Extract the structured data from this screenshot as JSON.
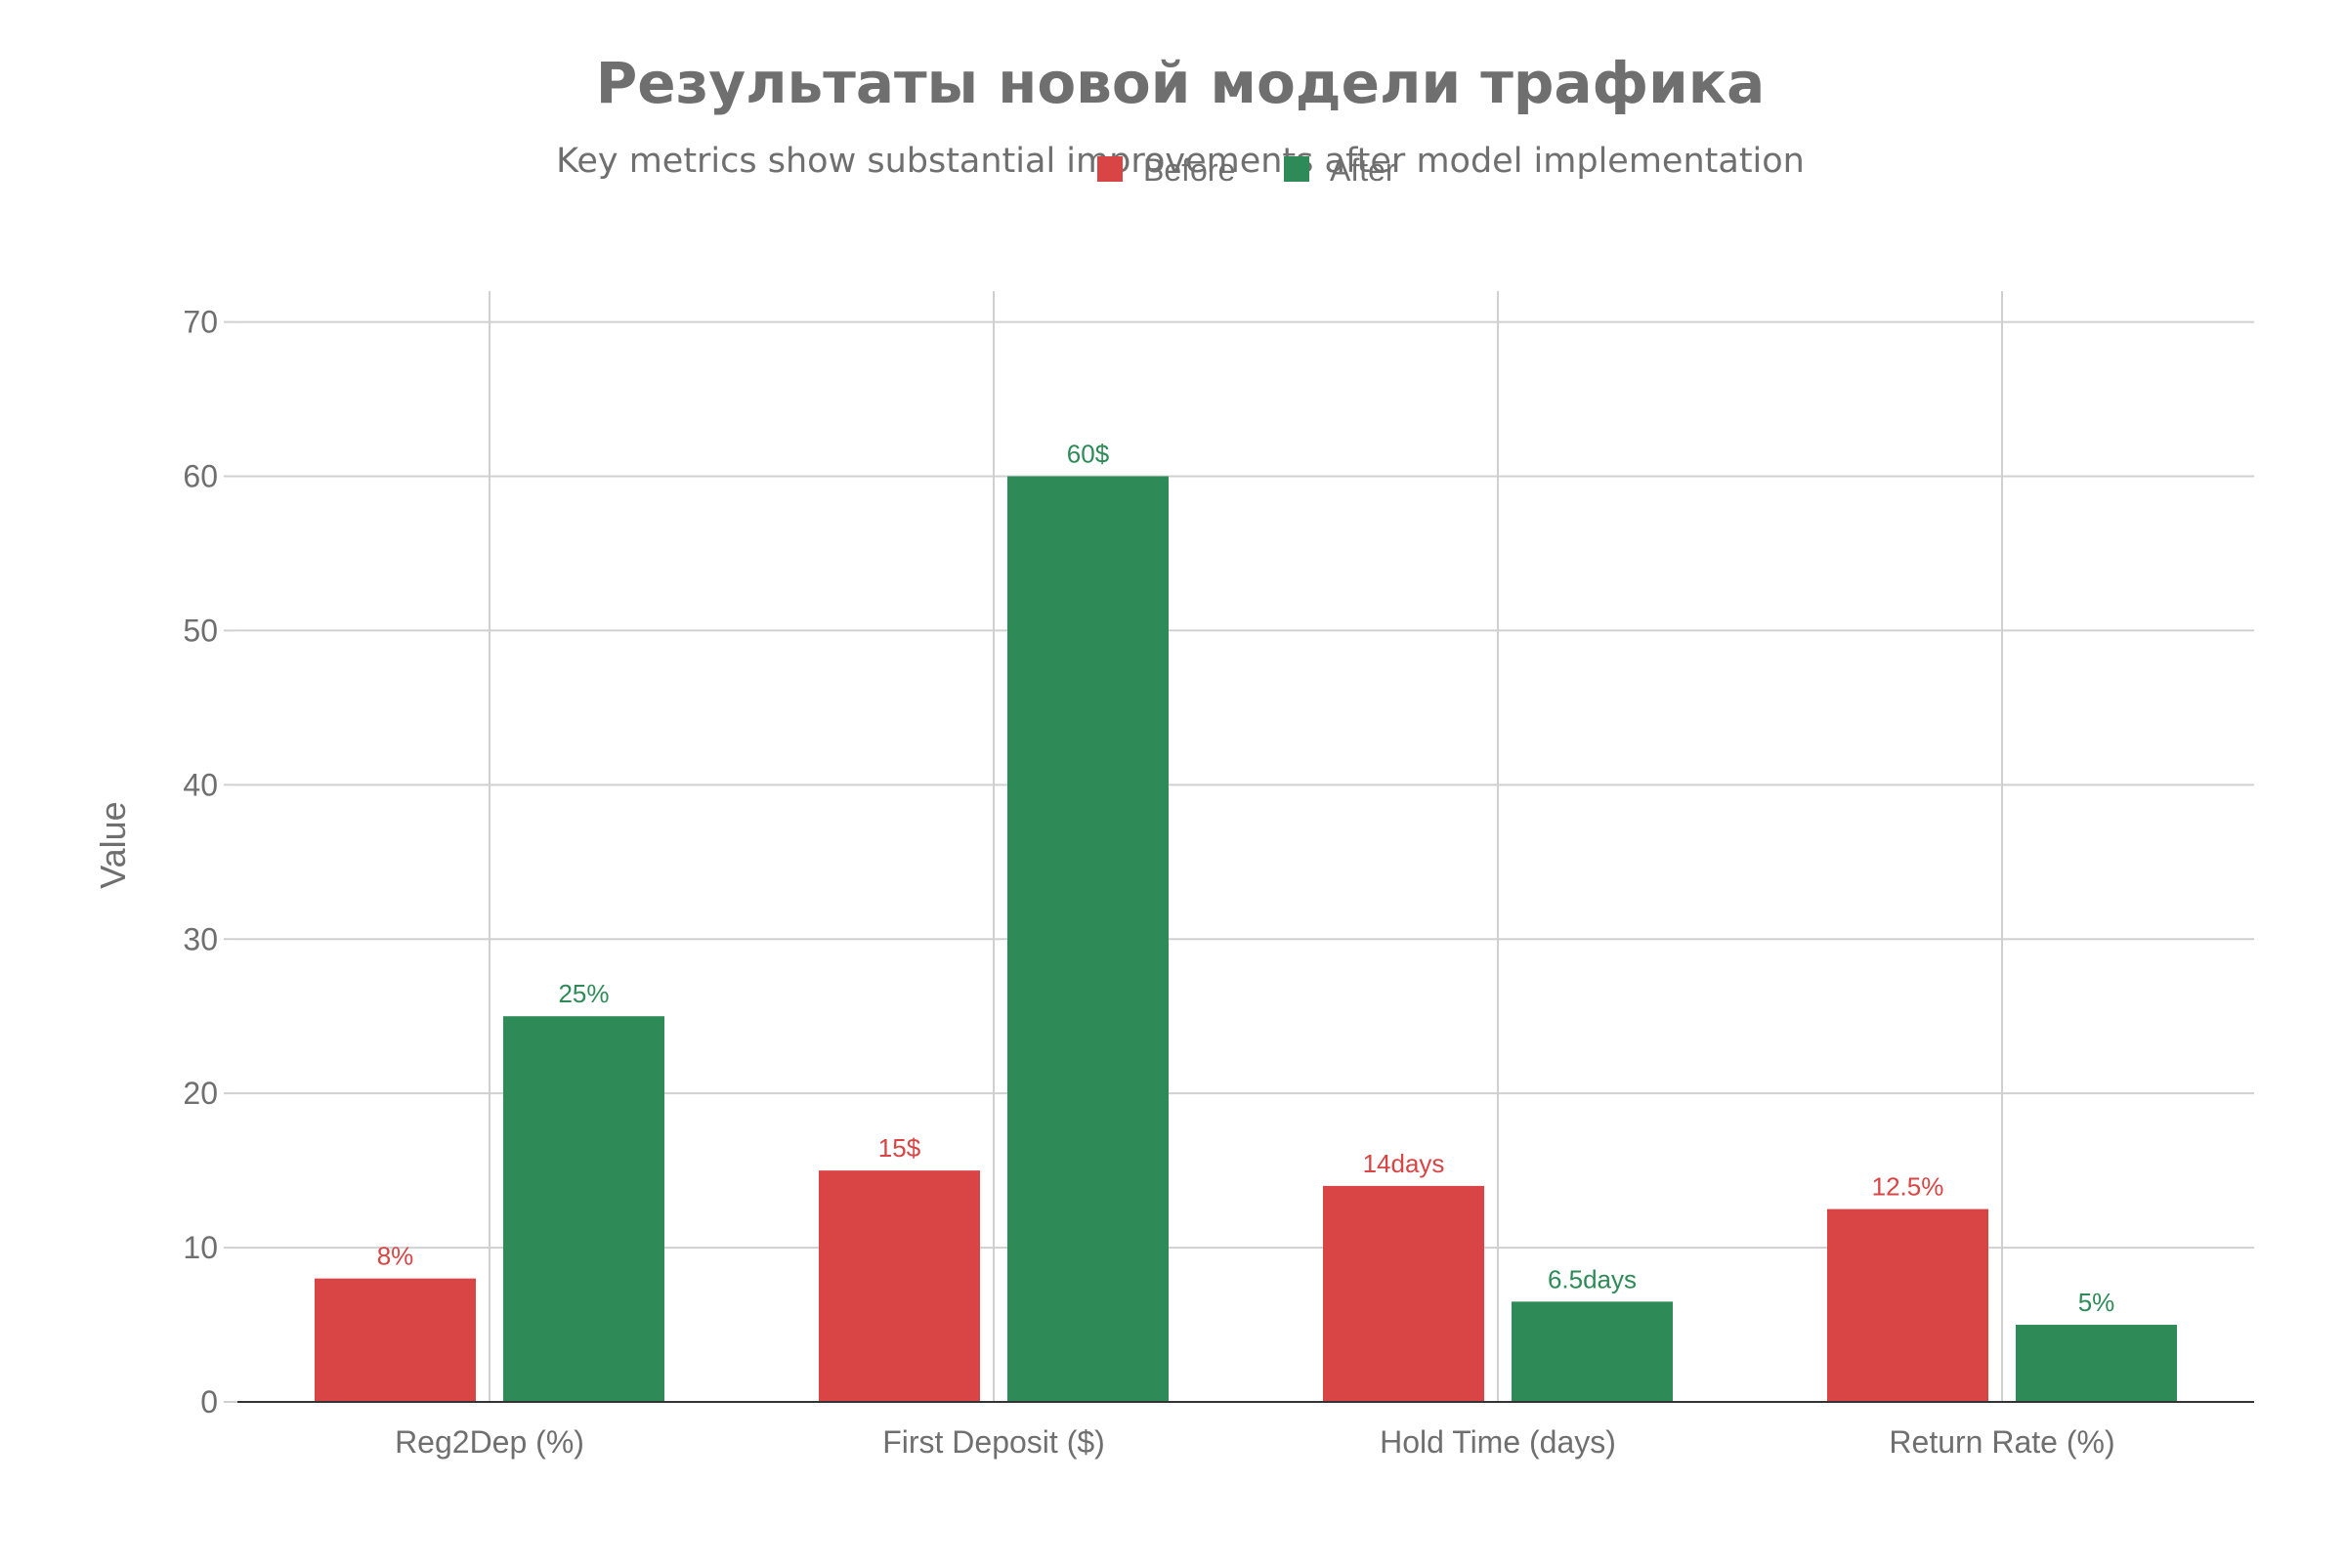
{
  "chart_data": {
    "type": "bar",
    "title": "Результаты новой модели трафика",
    "subtitle": "Key metrics show substantial improvements after model implementation",
    "xlabel": "",
    "ylabel": "Value",
    "ylim": [
      0,
      72
    ],
    "yticks": [
      0,
      10,
      20,
      30,
      40,
      50,
      60,
      70
    ],
    "grid": true,
    "legend_position": "top-center",
    "categories": [
      "Reg2Dep (%)",
      "First Deposit ($)",
      "Hold Time (days)",
      "Return Rate (%)"
    ],
    "series": [
      {
        "name": "Before",
        "color": "#d94545",
        "values": [
          8,
          15,
          14,
          12.5
        ],
        "labels": [
          "8%",
          "15$",
          "14days",
          "12.5%"
        ]
      },
      {
        "name": "After",
        "color": "#2e8b57",
        "values": [
          25,
          60,
          6.5,
          5
        ],
        "labels": [
          "25%",
          "60$",
          "6.5days",
          "5%"
        ]
      }
    ]
  },
  "colors": {
    "title": "#6f6f6f",
    "text": "#6f6f6f",
    "grid": "#d0d0d0",
    "axis": "#333333"
  }
}
